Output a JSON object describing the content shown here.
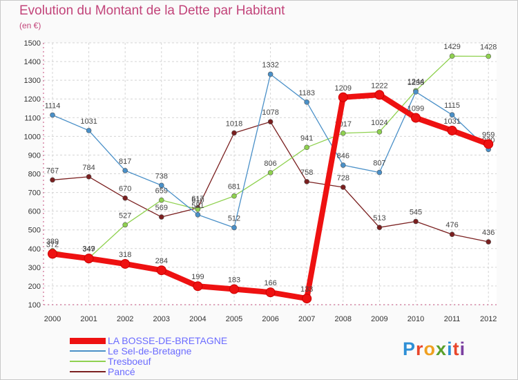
{
  "title": "Evolution du Montant de la Dette par Habitant",
  "unit": "(en €)",
  "brand": {
    "text": "Proxiti",
    "letter_colors": [
      "#2e8fd6",
      "#e8462b",
      "#f0a020",
      "#5aa02c",
      "#2e8fd6",
      "#e8462b",
      "#7b3fa0"
    ]
  },
  "chart_data": {
    "type": "line",
    "title": "Evolution du Montant de la Dette par Habitant",
    "ylabel": "(en €)",
    "xlabel": "",
    "ylim": [
      100,
      1500
    ],
    "y_ticks": [
      100,
      200,
      300,
      400,
      500,
      600,
      700,
      800,
      900,
      1000,
      1100,
      1200,
      1300,
      1400,
      1500
    ],
    "categories": [
      "2000",
      "2001",
      "2002",
      "2003",
      "2004",
      "2005",
      "2006",
      "2007",
      "2008",
      "2009",
      "2010",
      "2011",
      "2012"
    ],
    "grid": true,
    "legend_position": "bottom-left",
    "series": [
      {
        "name": "Pancé",
        "color": "#7a1f1f",
        "values": [
          767,
          784,
          670,
          569,
          617,
          1018,
          1078,
          758,
          728,
          513,
          545,
          476,
          436
        ]
      },
      {
        "name": "Tresboeuf",
        "color": "#8fd14f",
        "values": [
          389,
          349,
          527,
          659,
          610,
          681,
          806,
          941,
          1017,
          1024,
          1244,
          1429,
          1428
        ]
      },
      {
        "name": "Le Sel-de-Bretagne",
        "color": "#4a90c8",
        "values": [
          1114,
          1031,
          817,
          738,
          581,
          512,
          1332,
          1183,
          846,
          807,
          1238,
          1115,
          930
        ]
      },
      {
        "name": "LA BOSSE-DE-BRETAGNE",
        "color": "#ee1111",
        "values": [
          372,
          347,
          318,
          284,
          199,
          183,
          166,
          133,
          1209,
          1222,
          1099,
          1031,
          959
        ]
      }
    ]
  }
}
